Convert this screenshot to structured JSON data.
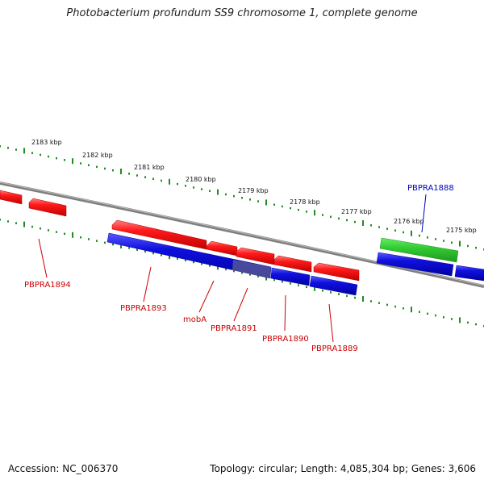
{
  "title": "Photobacterium profundum SS9 chromosome 1, complete genome",
  "footer": {
    "accession_label": "Accession:",
    "accession": "NC_006370",
    "topology_label": "Topology:",
    "topology": "circular",
    "length_label": "Length:",
    "length": "4,085,304 bp",
    "genes_label": "Genes:",
    "genes": "3,606"
  },
  "colors": {
    "backbone": "#7f7f7f",
    "ticks": "#228b22",
    "forward_gene": "#ff1a1a",
    "reverse_gene": "#1010e0",
    "highlight_gene": "#33cc33",
    "label_red": "#cc0000",
    "label_blue": "#0000bb"
  },
  "kbp_labels": [
    "2183 kbp",
    "2182 kbp",
    "2181 kbp",
    "2180 kbp",
    "2179 kbp",
    "2178 kbp",
    "2177 kbp",
    "2176 kbp",
    "2175 kbp"
  ],
  "genes": [
    {
      "name": "PBPRA1894",
      "color": "red"
    },
    {
      "name": "PBPRA1893",
      "color": "red"
    },
    {
      "name": "mobA",
      "color": "red"
    },
    {
      "name": "PBPRA1891",
      "color": "red"
    },
    {
      "name": "PBPRA1890",
      "color": "red"
    },
    {
      "name": "PBPRA1889",
      "color": "red"
    },
    {
      "name": "PBPRA1888",
      "color": "blue"
    }
  ]
}
